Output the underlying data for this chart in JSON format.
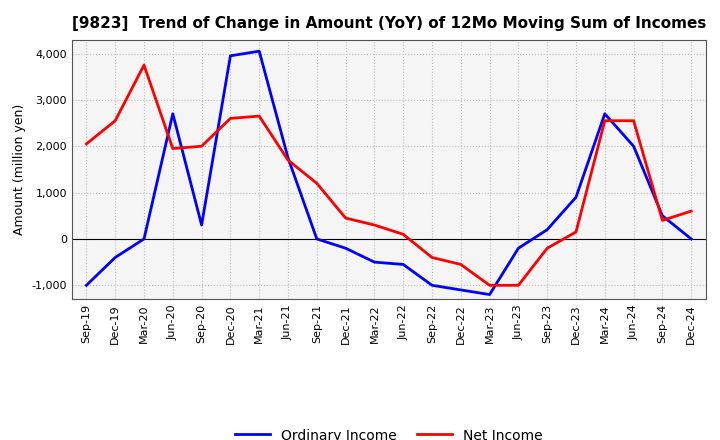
{
  "title": "[9823]  Trend of Change in Amount (YoY) of 12Mo Moving Sum of Incomes",
  "ylabel": "Amount (million yen)",
  "xlabels": [
    "Sep-19",
    "Dec-19",
    "Mar-20",
    "Jun-20",
    "Sep-20",
    "Dec-20",
    "Mar-21",
    "Jun-21",
    "Sep-21",
    "Dec-21",
    "Mar-22",
    "Jun-22",
    "Sep-22",
    "Dec-22",
    "Mar-23",
    "Jun-23",
    "Sep-23",
    "Dec-23",
    "Mar-24",
    "Jun-24",
    "Sep-24",
    "Dec-24"
  ],
  "ordinary_income": [
    -1000,
    -400,
    0,
    2700,
    300,
    3950,
    4050,
    1750,
    0,
    -200,
    -500,
    -550,
    -1000,
    -1100,
    -1200,
    -200,
    200,
    900,
    2700,
    2000,
    500,
    0
  ],
  "net_income": [
    2050,
    2550,
    3750,
    1950,
    2000,
    2600,
    2650,
    1700,
    1200,
    450,
    300,
    100,
    -400,
    -550,
    -1000,
    -1000,
    -200,
    150,
    2550,
    2550,
    400,
    600
  ],
  "ordinary_color": "#0000FF",
  "net_color": "#FF0000",
  "ylim": [
    -1300,
    4300
  ],
  "yticks": [
    -1000,
    0,
    1000,
    2000,
    3000,
    4000
  ],
  "plot_bg_color": "#F5F5F5",
  "fig_bg_color": "#FFFFFF",
  "grid_color": "#BBBBBB",
  "title_fontsize": 11,
  "legend_labels": [
    "Ordinary Income",
    "Net Income"
  ],
  "line_width": 2.0,
  "tick_fontsize": 8,
  "ylabel_fontsize": 9
}
